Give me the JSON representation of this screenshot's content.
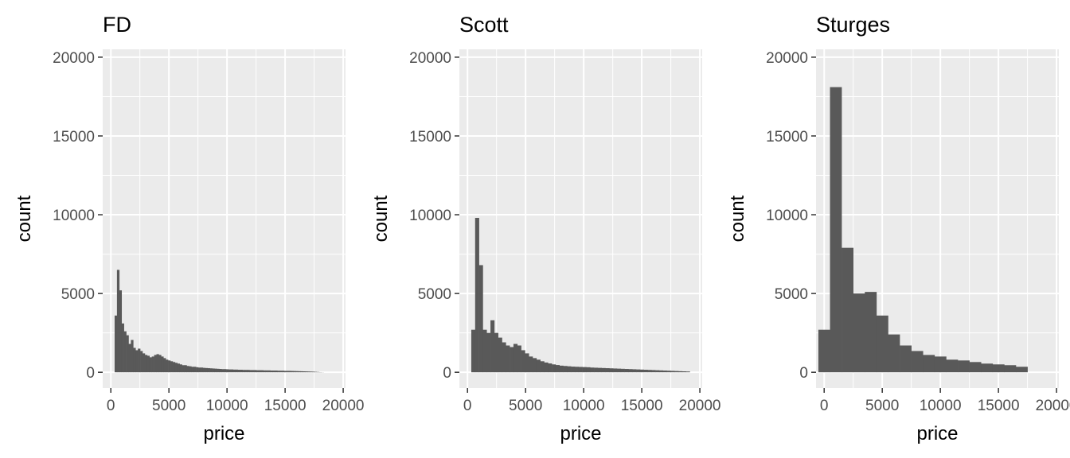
{
  "chart_data": [
    {
      "type": "bar",
      "title": "FD",
      "xlabel": "price",
      "ylabel": "count",
      "xlim": [
        -700,
        20200
      ],
      "ylim": [
        -1000,
        20500
      ],
      "xticks": [
        0,
        5000,
        10000,
        15000,
        20000
      ],
      "yticks": [
        0,
        5000,
        10000,
        15000,
        20000
      ],
      "grid": true,
      "bin_width": 200,
      "x_start": 326,
      "values": [
        3600,
        6500,
        5200,
        3100,
        2600,
        2350,
        1800,
        2050,
        1550,
        1400,
        1500,
        1350,
        1200,
        1100,
        1050,
        950,
        1000,
        1100,
        1150,
        1100,
        1000,
        900,
        800,
        750,
        700,
        650,
        600,
        550,
        500,
        450,
        450,
        400,
        380,
        350,
        350,
        320,
        300,
        300,
        280,
        270,
        260,
        250,
        240,
        230,
        220,
        210,
        200,
        200,
        190,
        180,
        180,
        170,
        170,
        160,
        160,
        150,
        150,
        150,
        140,
        140,
        140,
        130,
        130,
        130,
        120,
        120,
        120,
        110,
        110,
        110,
        100,
        100,
        100,
        90,
        90,
        90,
        85,
        80,
        75,
        70,
        65,
        60,
        55,
        50,
        45,
        40,
        30,
        20,
        10,
        5,
        0,
        0,
        0
      ]
    },
    {
      "type": "bar",
      "title": "Scott",
      "xlabel": "price",
      "ylabel": "count",
      "xlim": [
        -700,
        20200
      ],
      "ylim": [
        -1000,
        20500
      ],
      "xticks": [
        0,
        5000,
        10000,
        15000,
        20000
      ],
      "yticks": [
        0,
        5000,
        10000,
        15000,
        20000
      ],
      "grid": true,
      "bin_width": 330,
      "x_start": 326,
      "values": [
        2700,
        9800,
        6800,
        2700,
        2500,
        3300,
        2500,
        2200,
        1900,
        1700,
        1600,
        1800,
        1700,
        1400,
        1200,
        1000,
        900,
        800,
        700,
        620,
        560,
        500,
        460,
        420,
        400,
        380,
        360,
        350,
        340,
        330,
        320,
        300,
        290,
        280,
        270,
        260,
        250,
        240,
        230,
        220,
        210,
        200,
        190,
        180,
        170,
        160,
        150,
        140,
        130,
        120,
        110,
        100,
        90,
        80,
        70,
        60,
        50
      ]
    },
    {
      "type": "bar",
      "title": "Sturges",
      "xlabel": "price",
      "ylabel": "count",
      "xlim": [
        -700,
        20200
      ],
      "ylim": [
        -1000,
        20500
      ],
      "xticks": [
        0,
        5000,
        10000,
        15000,
        20000
      ],
      "yticks": [
        0,
        5000,
        10000,
        15000,
        20000
      ],
      "grid": true,
      "bin_width": 1000,
      "x_start": -500,
      "values": [
        2700,
        18100,
        7900,
        5000,
        5100,
        3600,
        2400,
        1700,
        1350,
        1100,
        1000,
        800,
        750,
        650,
        550,
        500,
        450,
        350
      ]
    }
  ]
}
